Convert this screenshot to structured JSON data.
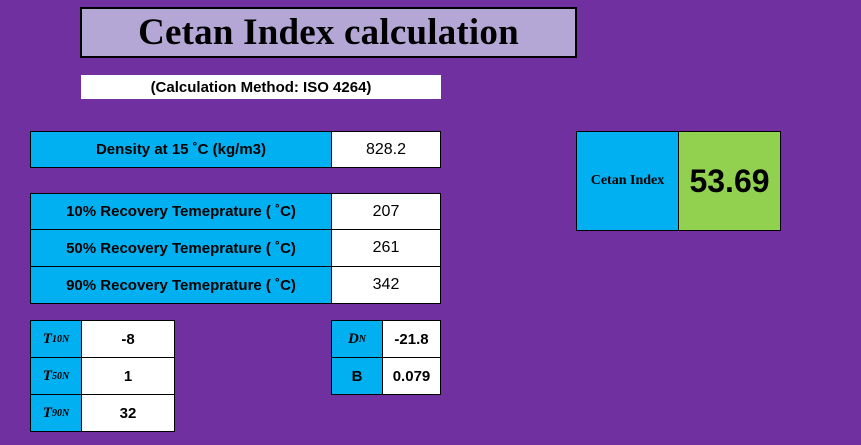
{
  "title": "Cetan Index calculation",
  "subtitle": "(Calculation Method:  ISO 4264)",
  "density": {
    "label": "Density at 15 ˚C (kg/m3)",
    "value": "828.2"
  },
  "recovery": [
    {
      "label": "10% Recovery Temeprature ( ˚C)",
      "value": "207"
    },
    {
      "label": "50% Recovery Temeprature ( ˚C)",
      "value": "261"
    },
    {
      "label": "90% Recovery Temeprature ( ˚C)",
      "value": "342"
    }
  ],
  "tn": [
    {
      "symbol": "T",
      "sub": "10N",
      "value": "-8"
    },
    {
      "symbol": "T",
      "sub": "50N",
      "value": "1"
    },
    {
      "symbol": "T",
      "sub": "90N",
      "value": "32"
    }
  ],
  "dn": {
    "symbol": "D",
    "sub": "N",
    "value": "-21.8"
  },
  "b": {
    "symbol": "B",
    "value": "0.079"
  },
  "result": {
    "label": "Cetan Index",
    "value": "53.69"
  },
  "colors": {
    "background": "#7030a0",
    "header": "#b4a7d6",
    "label_cell": "#00b0f0",
    "result_cell": "#92d050"
  }
}
